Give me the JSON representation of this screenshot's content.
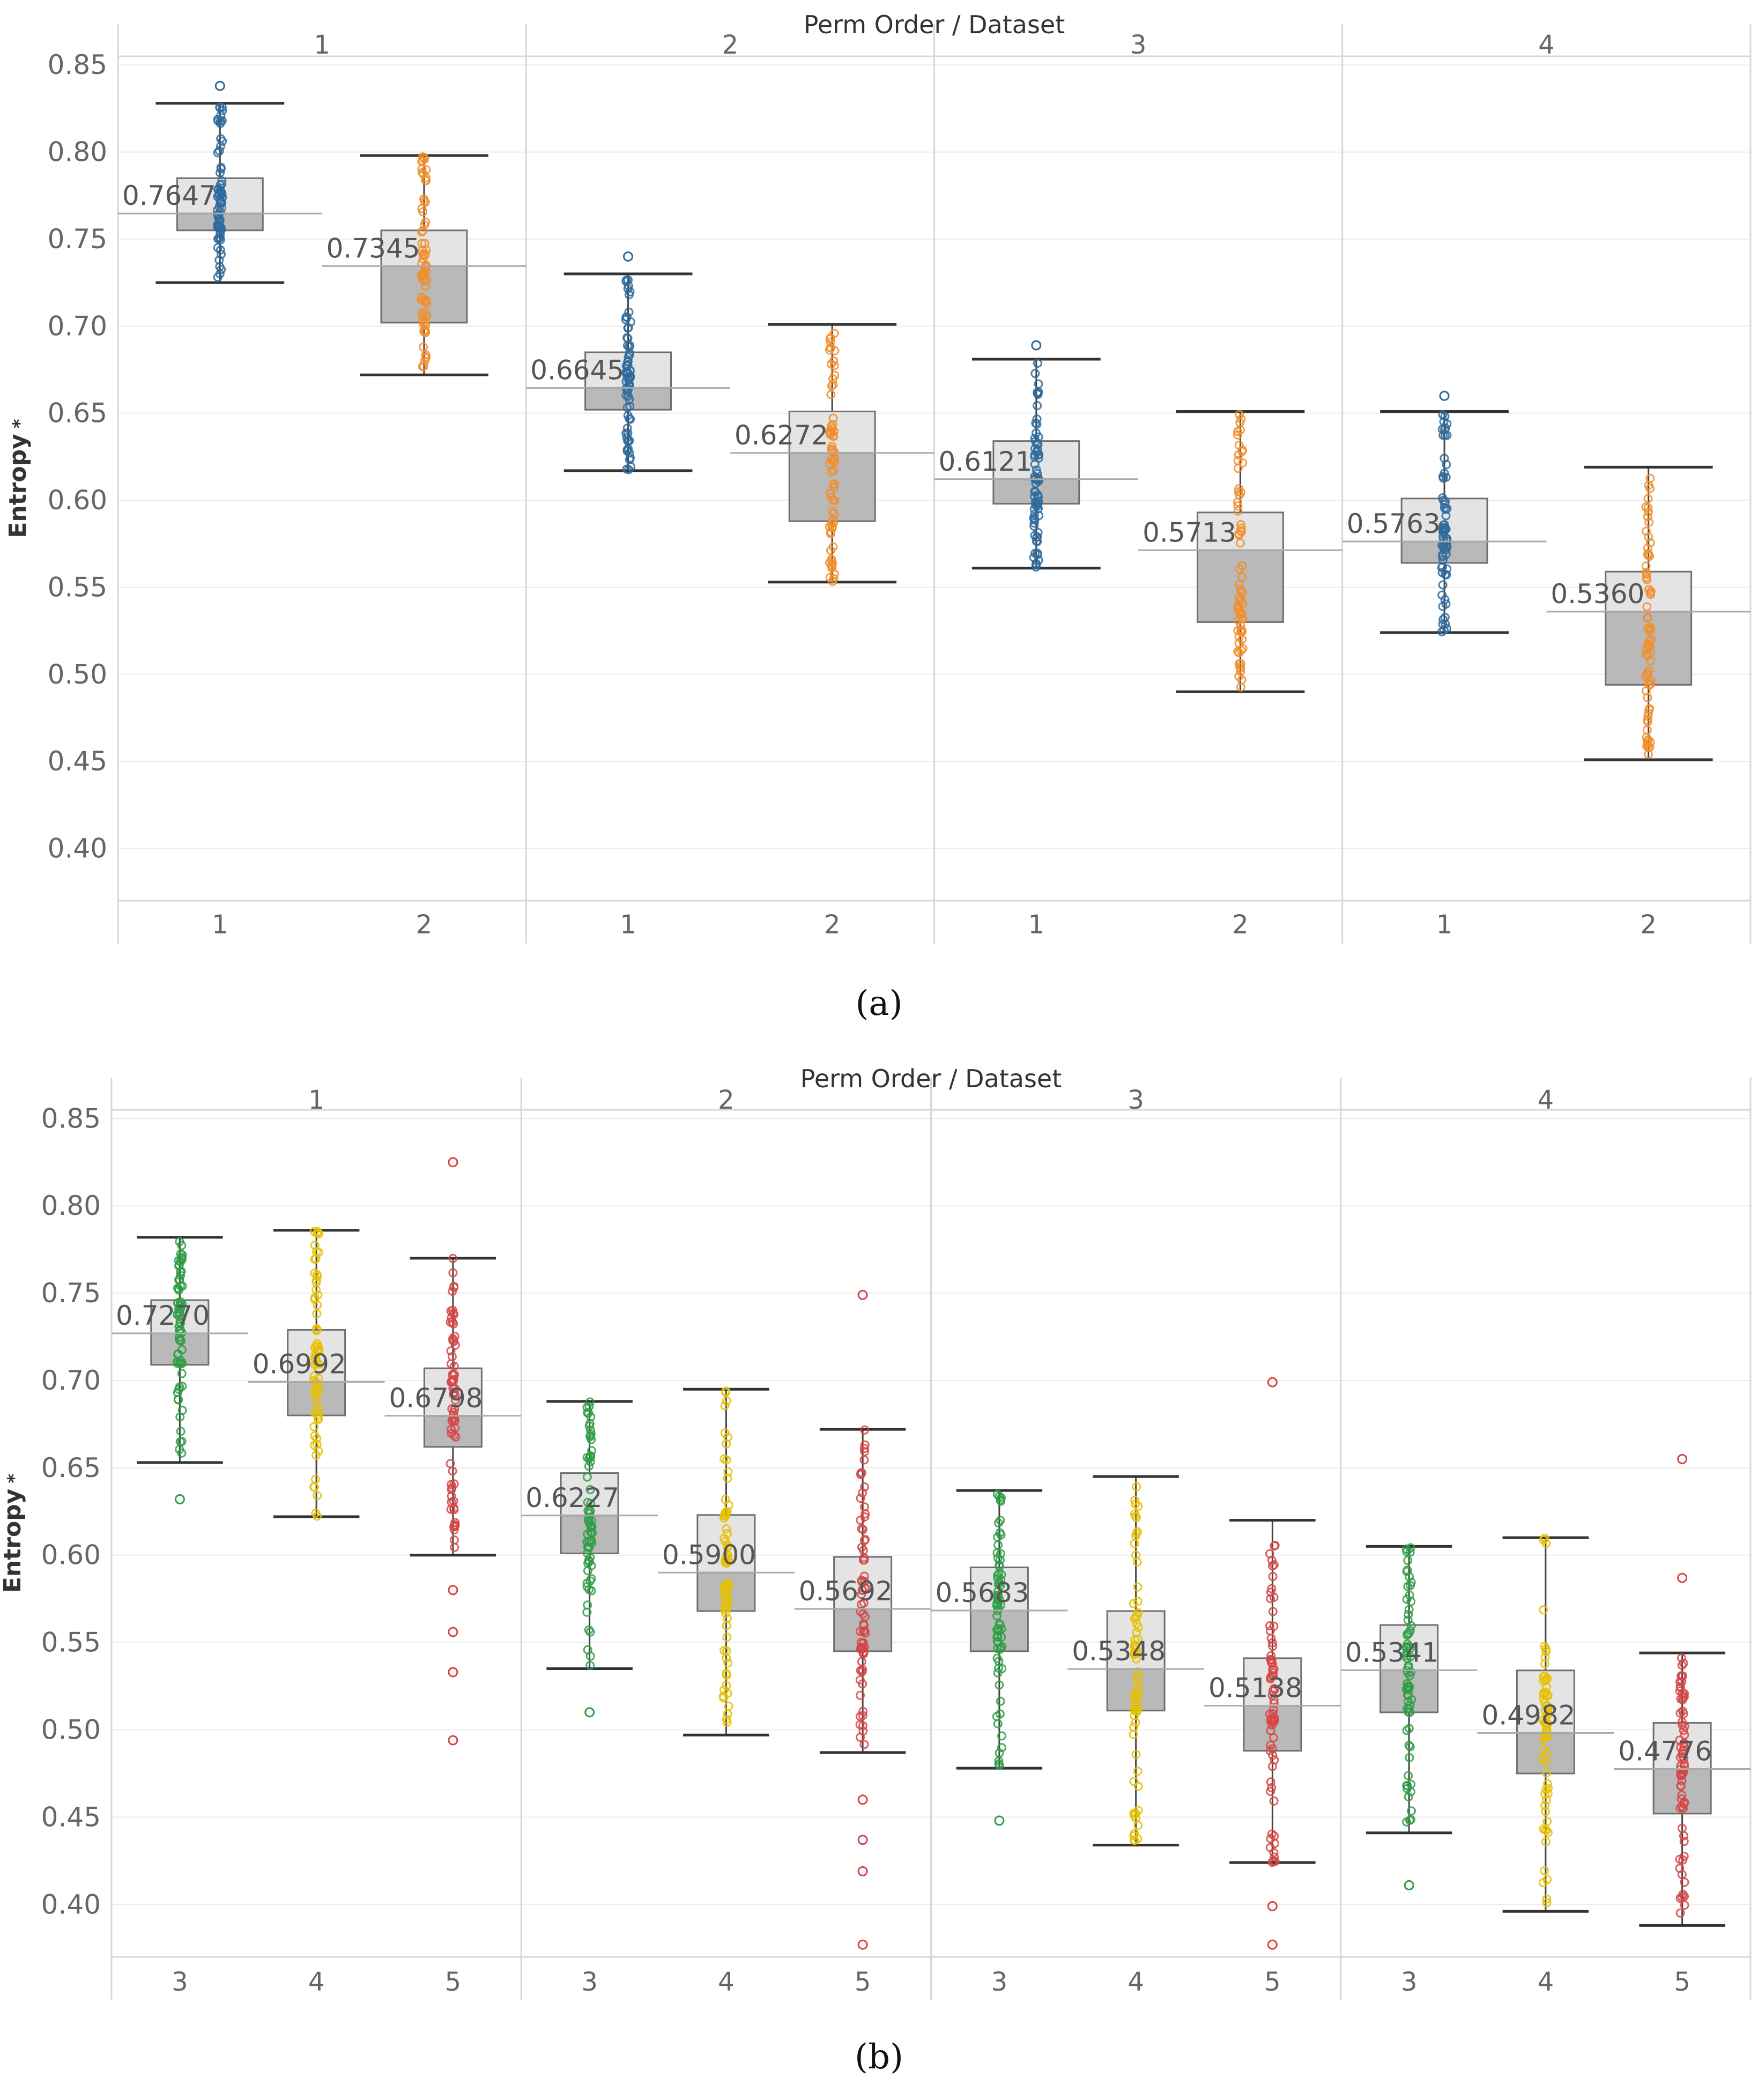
{
  "chart_data": [
    {
      "type": "boxplot",
      "panel": "a",
      "title": "Perm Order / Dataset",
      "ylabel": "Entropy",
      "ylabel_marker": "*",
      "ylim": [
        0.37,
        0.855
      ],
      "yticks": [
        "0.40",
        "0.45",
        "0.50",
        "0.55",
        "0.60",
        "0.65",
        "0.70",
        "0.75",
        "0.80",
        "0.85"
      ],
      "groups": [
        "1",
        "2",
        "3",
        "4"
      ],
      "categories": [
        "1",
        "2"
      ],
      "series": [
        {
          "group": "1",
          "dataset": "1",
          "color": "#2e6a9c",
          "median": 0.7647,
          "q1": 0.755,
          "q3": 0.785,
          "whisker_low": 0.725,
          "whisker_high": 0.828,
          "outliers": [
            0.838
          ],
          "label": "0.7647"
        },
        {
          "group": "1",
          "dataset": "2",
          "color": "#f28e2b",
          "median": 0.7345,
          "q1": 0.702,
          "q3": 0.755,
          "whisker_low": 0.672,
          "whisker_high": 0.798,
          "outliers": [],
          "label": "0.7345"
        },
        {
          "group": "2",
          "dataset": "1",
          "color": "#2e6a9c",
          "median": 0.6645,
          "q1": 0.652,
          "q3": 0.685,
          "whisker_low": 0.617,
          "whisker_high": 0.73,
          "outliers": [
            0.74
          ],
          "label": "0.6645"
        },
        {
          "group": "2",
          "dataset": "2",
          "color": "#f28e2b",
          "median": 0.6272,
          "q1": 0.588,
          "q3": 0.651,
          "whisker_low": 0.553,
          "whisker_high": 0.701,
          "outliers": [],
          "label": "0.6272"
        },
        {
          "group": "3",
          "dataset": "1",
          "color": "#2e6a9c",
          "median": 0.6121,
          "q1": 0.598,
          "q3": 0.634,
          "whisker_low": 0.561,
          "whisker_high": 0.681,
          "outliers": [
            0.689
          ],
          "label": "0.6121"
        },
        {
          "group": "3",
          "dataset": "2",
          "color": "#f28e2b",
          "median": 0.5713,
          "q1": 0.53,
          "q3": 0.593,
          "whisker_low": 0.49,
          "whisker_high": 0.651,
          "outliers": [],
          "label": "0.5713"
        },
        {
          "group": "4",
          "dataset": "1",
          "color": "#2e6a9c",
          "median": 0.5763,
          "q1": 0.564,
          "q3": 0.601,
          "whisker_low": 0.524,
          "whisker_high": 0.651,
          "outliers": [
            0.66
          ],
          "label": "0.5763"
        },
        {
          "group": "4",
          "dataset": "2",
          "color": "#f28e2b",
          "median": 0.536,
          "q1": 0.494,
          "q3": 0.559,
          "whisker_low": 0.451,
          "whisker_high": 0.619,
          "outliers": [],
          "label": "0.5360"
        }
      ],
      "caption": "(a)"
    },
    {
      "type": "boxplot",
      "panel": "b",
      "title": "Perm Order / Dataset",
      "ylabel": "Entropy",
      "ylabel_marker": "*",
      "ylim": [
        0.37,
        0.855
      ],
      "yticks": [
        "0.40",
        "0.45",
        "0.50",
        "0.55",
        "0.60",
        "0.65",
        "0.70",
        "0.75",
        "0.80",
        "0.85"
      ],
      "groups": [
        "1",
        "2",
        "3",
        "4"
      ],
      "categories": [
        "3",
        "4",
        "5"
      ],
      "series": [
        {
          "group": "1",
          "dataset": "3",
          "color": "#2f9e44",
          "median": 0.727,
          "q1": 0.709,
          "q3": 0.746,
          "whisker_low": 0.653,
          "whisker_high": 0.782,
          "outliers": [
            0.632
          ],
          "label": "0.7270"
        },
        {
          "group": "1",
          "dataset": "4",
          "color": "#e5c100",
          "median": 0.6992,
          "q1": 0.68,
          "q3": 0.729,
          "whisker_low": 0.622,
          "whisker_high": 0.786,
          "outliers": [],
          "label": "0.6992"
        },
        {
          "group": "1",
          "dataset": "5",
          "color": "#d64545",
          "median": 0.6798,
          "q1": 0.662,
          "q3": 0.707,
          "whisker_low": 0.6,
          "whisker_high": 0.77,
          "outliers": [
            0.825,
            0.58,
            0.556,
            0.533,
            0.494
          ],
          "label": "0.6798"
        },
        {
          "group": "2",
          "dataset": "3",
          "color": "#2f9e44",
          "median": 0.6227,
          "q1": 0.601,
          "q3": 0.647,
          "whisker_low": 0.535,
          "whisker_high": 0.688,
          "outliers": [
            0.51
          ],
          "label": "0.6227"
        },
        {
          "group": "2",
          "dataset": "4",
          "color": "#e5c100",
          "median": 0.59,
          "q1": 0.568,
          "q3": 0.623,
          "whisker_low": 0.497,
          "whisker_high": 0.695,
          "outliers": [],
          "label": "0.5900"
        },
        {
          "group": "2",
          "dataset": "5",
          "color": "#d64545",
          "median": 0.5692,
          "q1": 0.545,
          "q3": 0.599,
          "whisker_low": 0.487,
          "whisker_high": 0.672,
          "outliers": [
            0.749,
            0.46,
            0.437,
            0.419,
            0.377
          ],
          "label": "0.5692"
        },
        {
          "group": "3",
          "dataset": "3",
          "color": "#2f9e44",
          "median": 0.5683,
          "q1": 0.545,
          "q3": 0.593,
          "whisker_low": 0.478,
          "whisker_high": 0.637,
          "outliers": [
            0.448
          ],
          "label": "0.5683"
        },
        {
          "group": "3",
          "dataset": "4",
          "color": "#e5c100",
          "median": 0.5348,
          "q1": 0.511,
          "q3": 0.568,
          "whisker_low": 0.434,
          "whisker_high": 0.645,
          "outliers": [],
          "label": "0.5348"
        },
        {
          "group": "3",
          "dataset": "5",
          "color": "#d64545",
          "median": 0.5138,
          "q1": 0.488,
          "q3": 0.541,
          "whisker_low": 0.424,
          "whisker_high": 0.62,
          "outliers": [
            0.699,
            0.399,
            0.377
          ],
          "label": "0.5138"
        },
        {
          "group": "4",
          "dataset": "3",
          "color": "#2f9e44",
          "median": 0.5341,
          "q1": 0.51,
          "q3": 0.56,
          "whisker_low": 0.441,
          "whisker_high": 0.605,
          "outliers": [
            0.411
          ],
          "label": "0.5341"
        },
        {
          "group": "4",
          "dataset": "4",
          "color": "#e5c100",
          "median": 0.4982,
          "q1": 0.475,
          "q3": 0.534,
          "whisker_low": 0.396,
          "whisker_high": 0.61,
          "outliers": [],
          "label": "0.4982"
        },
        {
          "group": "4",
          "dataset": "5",
          "color": "#d64545",
          "median": 0.4776,
          "q1": 0.452,
          "q3": 0.504,
          "whisker_low": 0.388,
          "whisker_high": 0.544,
          "outliers": [
            0.655,
            0.587
          ],
          "label": "0.4776"
        }
      ],
      "caption": "(b)"
    }
  ],
  "colors": {
    "box_lower": "#b9b9b9",
    "box_upper": "#e4e4e4",
    "box_edge": "#6f6f6f",
    "grid": "#ececec",
    "divider": "#d7d7d7",
    "tick_text": "#666666",
    "title_text": "#333333"
  }
}
